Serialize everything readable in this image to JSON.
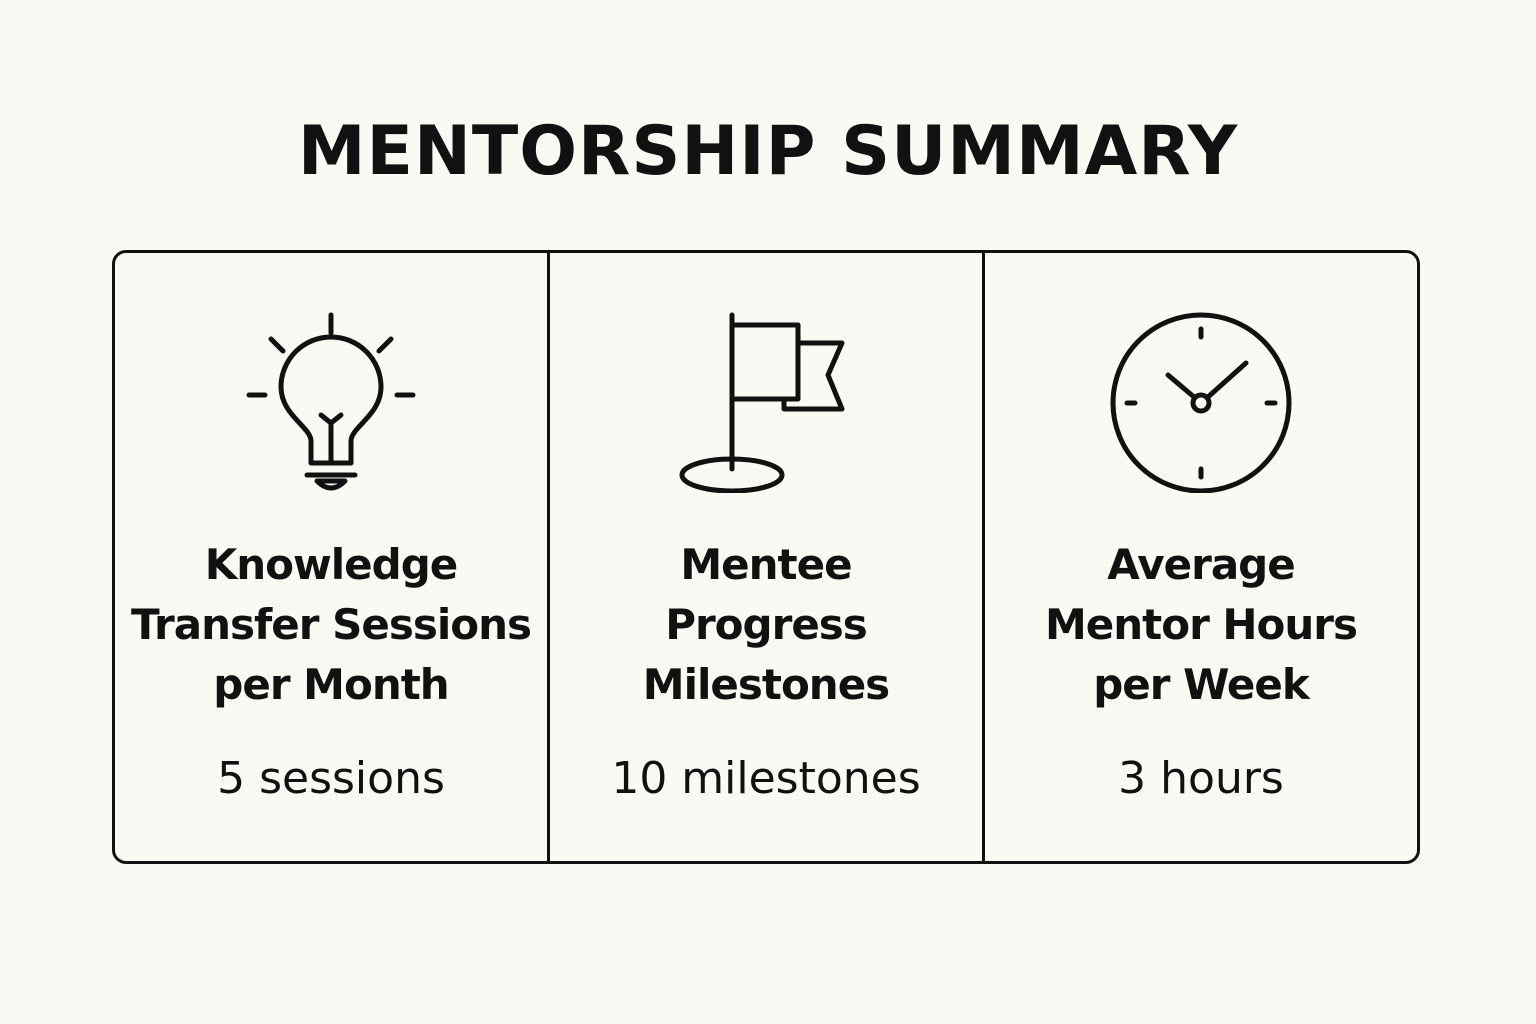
{
  "title": "MENTORSHIP SUMMARY",
  "cards": [
    {
      "icon": "lightbulb-icon",
      "label_lines": [
        "Knowledge",
        "Transfer Sessions",
        "per Month"
      ],
      "value": "5 sessions"
    },
    {
      "icon": "flag-icon",
      "label_lines": [
        "Mentee",
        "Progress",
        "Milestones"
      ],
      "value": "10 milestones"
    },
    {
      "icon": "clock-icon",
      "label_lines": [
        "Average",
        "Mentor Hours",
        "per Week"
      ],
      "value": "3 hours"
    }
  ]
}
